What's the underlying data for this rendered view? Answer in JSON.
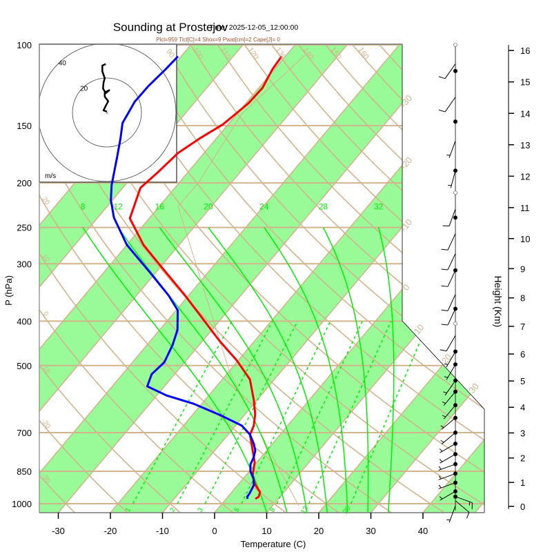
{
  "header": {
    "title": "Sounding at Prostejov",
    "time": "Time: 2025-12-05_12:00:00",
    "indices": "Plcl=959 Tlcl[C]=4 Shox=9 Pwat[cm]=2 Cape[J]= 0"
  },
  "chart_data": {
    "type": "line",
    "subtype": "skew-T log-P diagram",
    "title": "Sounding at Prostejov",
    "xlabel": "Temperature (C)",
    "ylabel": "P (hPa)",
    "y2label": "Height (Km)",
    "x_ticks": [
      "-30",
      "-20",
      "-10",
      "0",
      "10",
      "20",
      "30",
      "40"
    ],
    "x_tick_values": [
      -30,
      -20,
      -10,
      0,
      10,
      20,
      30,
      40
    ],
    "y_ticks": [
      "100",
      "150",
      "200",
      "250",
      "300",
      "400",
      "500",
      "700",
      "850",
      "1000"
    ],
    "y_tick_values": [
      100,
      150,
      200,
      250,
      300,
      400,
      500,
      700,
      850,
      1000
    ],
    "height_ticks": [
      "0",
      "1",
      "2",
      "3",
      "4",
      "5",
      "6",
      "7",
      "8",
      "9",
      "10",
      "11",
      "12",
      "13",
      "14",
      "15",
      "16"
    ],
    "height_tick_values": [
      0,
      1,
      2,
      3,
      4,
      5,
      6,
      7,
      8,
      9,
      10,
      11,
      12,
      13,
      14,
      15,
      16
    ],
    "pressure_range": [
      100,
      1046
    ],
    "colors": {
      "temperature": "#ff0000",
      "dewpoint": "#0000ff",
      "isotherm_band": "#98fb98",
      "grid": "#d2b48c",
      "moist_adiabat": "#00ee00",
      "mixing_ratio": "#00ee00",
      "indices_text": "#a0522d"
    },
    "isotherm_labels": [
      "-30",
      "-20",
      "-10",
      "0",
      "10",
      "20",
      "30"
    ],
    "isotherm_label_values": [
      -30,
      -20,
      -10,
      0,
      10,
      20,
      30
    ],
    "dry_adiabat_labels_top": [
      "90",
      "100",
      "110",
      "120",
      "130",
      "140",
      "150",
      "160"
    ],
    "dry_adiabat_label_top_values": [
      90,
      100,
      110,
      120,
      130,
      140,
      150,
      160
    ],
    "dry_adiabat_labels_left": [
      "20",
      "10",
      "0",
      "-10",
      "-20",
      "-30"
    ],
    "dry_adiabat_label_left_values": [
      20,
      10,
      0,
      -10,
      -20,
      -30
    ],
    "moist_adiabat_labels": [
      "8",
      "12",
      "16",
      "20",
      "24",
      "28",
      "32"
    ],
    "moist_adiabat_values": [
      8,
      12,
      16,
      20,
      24,
      28,
      32
    ],
    "mixing_ratio_labels": [
      "1",
      "2",
      "3",
      "5",
      "8",
      "12",
      "20"
    ],
    "mixing_ratio_values": [
      1,
      2,
      3,
      5,
      8,
      12,
      20
    ],
    "series": [
      {
        "name": "Temperature",
        "p": [
          106,
          113,
          124,
          134,
          149,
          160,
          172,
          190,
          205,
          239,
          273,
          303,
          350,
          393,
          440,
          488,
          536,
          595,
          638,
          676,
          707,
          758,
          813,
          871,
          911,
          943,
          966,
          976
        ],
        "T": [
          -60.7,
          -60.4,
          -59.3,
          -59.5,
          -61.0,
          -63.2,
          -65.0,
          -65.8,
          -66.6,
          -63.7,
          -56.8,
          -50.2,
          -41.0,
          -33.9,
          -27.0,
          -20.2,
          -14.7,
          -10.6,
          -8.1,
          -6.5,
          -5.8,
          -3.1,
          -0.4,
          1.4,
          3.4,
          5.4,
          5.9,
          5.6
        ]
      },
      {
        "name": "Dewpoint",
        "p": [
          106,
          113,
          123,
          133,
          148,
          160,
          176,
          202,
          218,
          238,
          273,
          314,
          352,
          379,
          418,
          451,
          492,
          522,
          555,
          581,
          605,
          642,
          676,
          707,
          740,
          766,
          793,
          821,
          850,
          880,
          911,
          950,
          966,
          976
        ],
        "T": [
          -80.6,
          -80.9,
          -81.5,
          -81.6,
          -80.5,
          -78.4,
          -76.0,
          -72.6,
          -70.3,
          -66.9,
          -60.0,
          -51.0,
          -43.8,
          -39.7,
          -36.6,
          -35.1,
          -33.9,
          -34.4,
          -33.3,
          -28.1,
          -21.7,
          -14.5,
          -8.8,
          -5.8,
          -3.6,
          -2.2,
          -1.4,
          -0.9,
          0.2,
          1.9,
          3.1,
          3.6,
          3.7,
          4.1
        ]
      },
      {
        "name": "Parcel",
        "p": [
          1010,
          766,
          513,
          225,
          200,
          141,
          105
        ],
        "T": [
          15.0,
          0.5,
          -20.1,
          -56.4,
          -56.3,
          -59.1,
          -56.4
        ]
      }
    ],
    "hodograph": {
      "units": "m/s",
      "ring_labels": [
        "20",
        "40"
      ],
      "ring_values": [
        20,
        40
      ],
      "u": [
        0,
        -2,
        -0.7,
        0.7,
        -1.3,
        -1.3,
        1.3,
        -0.7,
        -2.3,
        -2,
        -1.3,
        -2.7,
        -2.7,
        -0.7
      ],
      "v": [
        0.5,
        1.2,
        3.9,
        6.5,
        9.2,
        11.6,
        12.9,
        11.2,
        13.9,
        17.2,
        19.9,
        23.9,
        27.2,
        28.1
      ]
    },
    "wind_barbs": [
      {
        "p": 100,
        "dir": 0,
        "spd": 0,
        "mark": "open"
      },
      {
        "p": 110,
        "dir": 215,
        "spd": 10,
        "mark": ""
      },
      {
        "p": 114,
        "dir": 0,
        "spd": 0,
        "mark": "dot"
      },
      {
        "p": 130,
        "dir": 215,
        "spd": 10,
        "mark": ""
      },
      {
        "p": 147,
        "dir": 0,
        "spd": 0,
        "mark": "dot"
      },
      {
        "p": 162,
        "dir": 200,
        "spd": 7,
        "mark": ""
      },
      {
        "p": 188,
        "dir": 195,
        "spd": 5,
        "mark": "dot"
      },
      {
        "p": 210,
        "dir": 0,
        "spd": 0,
        "mark": "open"
      },
      {
        "p": 228,
        "dir": 200,
        "spd": 10,
        "mark": ""
      },
      {
        "p": 238,
        "dir": 0,
        "spd": 0,
        "mark": "dot"
      },
      {
        "p": 258,
        "dir": 205,
        "spd": 10,
        "mark": ""
      },
      {
        "p": 285,
        "dir": 205,
        "spd": 10,
        "mark": ""
      },
      {
        "p": 310,
        "dir": 205,
        "spd": 10,
        "mark": "dot"
      },
      {
        "p": 350,
        "dir": 205,
        "spd": 10,
        "mark": ""
      },
      {
        "p": 376,
        "dir": 205,
        "spd": 10,
        "mark": "dot"
      },
      {
        "p": 405,
        "dir": 0,
        "spd": 0,
        "mark": "open"
      },
      {
        "p": 430,
        "dir": 210,
        "spd": 10,
        "mark": ""
      },
      {
        "p": 466,
        "dir": 210,
        "spd": 8,
        "mark": "dot"
      },
      {
        "p": 497,
        "dir": 210,
        "spd": 8,
        "mark": "dot"
      },
      {
        "p": 539,
        "dir": 215,
        "spd": 8,
        "mark": "dot"
      },
      {
        "p": 570,
        "dir": 220,
        "spd": 8,
        "mark": "dot"
      },
      {
        "p": 610,
        "dir": 220,
        "spd": 8,
        "mark": "dot"
      },
      {
        "p": 650,
        "dir": 230,
        "spd": 8,
        "mark": "dot"
      },
      {
        "p": 700,
        "dir": 230,
        "spd": 8,
        "mark": "dot"
      },
      {
        "p": 740,
        "dir": 240,
        "spd": 8,
        "mark": "dot"
      },
      {
        "p": 780,
        "dir": 240,
        "spd": 8,
        "mark": "dot"
      },
      {
        "p": 820,
        "dir": 250,
        "spd": 8,
        "mark": "dot"
      },
      {
        "p": 860,
        "dir": 250,
        "spd": 8,
        "mark": "dot"
      },
      {
        "p": 900,
        "dir": 250,
        "spd": 6,
        "mark": "dot"
      },
      {
        "p": 940,
        "dir": 240,
        "spd": 6,
        "mark": "dot"
      },
      {
        "p": 965,
        "dir": 110,
        "spd": 15,
        "mark": "dot"
      },
      {
        "p": 985,
        "dir": 130,
        "spd": 12,
        "mark": ""
      },
      {
        "p": 1010,
        "dir": 200,
        "spd": 8,
        "mark": ""
      }
    ]
  }
}
